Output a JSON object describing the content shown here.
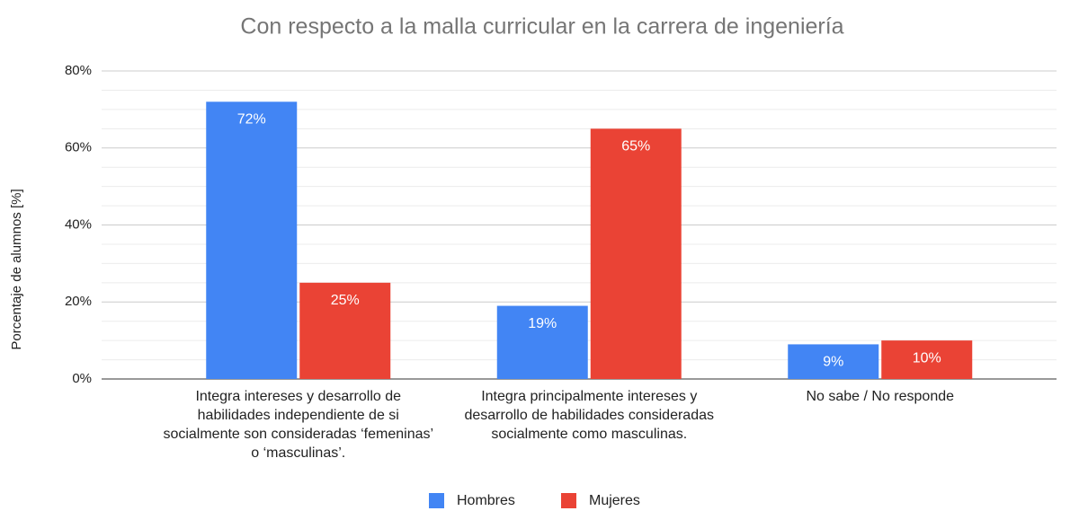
{
  "chart_data": {
    "type": "bar",
    "title": "Con respecto a la malla curricular en la carrera de ingeniería",
    "y_label": "Porcentaje de alumnos [%]",
    "categories": [
      "Integra intereses y desarrollo de habilidades independiente de si socialmente son consideradas ‘femeninas’ o ‘masculinas’.",
      "Integra principalmente intereses y desarrollo de habilidades consideradas socialmente como masculinas.",
      "No sabe / No responde"
    ],
    "series": [
      {
        "name": "Hombres",
        "color": "#4285f4",
        "values": [
          72,
          19,
          9
        ],
        "value_labels": [
          "72%",
          "19%",
          "9%"
        ]
      },
      {
        "name": "Mujeres",
        "color": "#ea4335",
        "values": [
          25,
          65,
          10
        ],
        "value_labels": [
          "25%",
          "65%",
          "10%"
        ]
      }
    ],
    "ylim": [
      0,
      80
    ],
    "yticks": [
      {
        "value": 0,
        "label": "0%"
      },
      {
        "value": 20,
        "label": "20%"
      },
      {
        "value": 40,
        "label": "40%"
      },
      {
        "value": 60,
        "label": "60%"
      },
      {
        "value": 80,
        "label": "80%"
      }
    ],
    "y_minor_ticks": [
      5,
      10,
      15,
      25,
      30,
      35,
      45,
      50,
      55,
      65,
      70,
      75
    ],
    "grid": true,
    "legend": "bottom"
  }
}
